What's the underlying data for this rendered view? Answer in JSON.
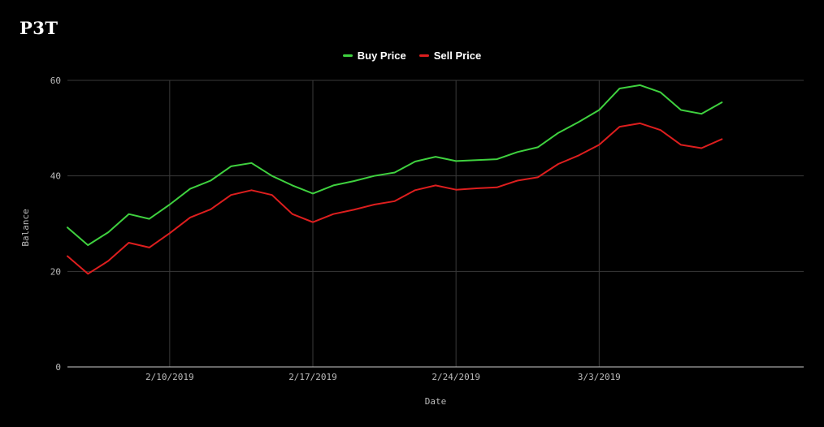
{
  "app": {
    "logo_text": "P3T"
  },
  "chart_data": {
    "type": "line",
    "title": "",
    "xlabel": "Date",
    "ylabel": "Balance",
    "ylim": [
      0,
      60
    ],
    "y_ticks": [
      0,
      20,
      40,
      60
    ],
    "x_range": [
      "2/5/2019",
      "3/13/2019"
    ],
    "x_ticks": [
      "2/10/2019",
      "2/17/2019",
      "2/24/2019",
      "3/3/2019"
    ],
    "grid": true,
    "legend_position": "top-center",
    "x": [
      "2/5/2019",
      "2/6/2019",
      "2/7/2019",
      "2/8/2019",
      "2/9/2019",
      "2/10/2019",
      "2/11/2019",
      "2/12/2019",
      "2/13/2019",
      "2/14/2019",
      "2/15/2019",
      "2/16/2019",
      "2/17/2019",
      "2/18/2019",
      "2/19/2019",
      "2/20/2019",
      "2/21/2019",
      "2/22/2019",
      "2/23/2019",
      "2/24/2019",
      "2/25/2019",
      "2/26/2019",
      "2/27/2019",
      "2/28/2019",
      "3/1/2019",
      "3/2/2019",
      "3/3/2019",
      "3/4/2019",
      "3/5/2019",
      "3/6/2019",
      "3/7/2019",
      "3/8/2019",
      "3/9/2019"
    ],
    "series": [
      {
        "name": "Buy Price",
        "color": "#3fd13f",
        "values": [
          29.2,
          25.5,
          28.2,
          32.0,
          31.0,
          34.0,
          37.3,
          39.0,
          42.0,
          42.7,
          40.0,
          38.0,
          36.3,
          38.0,
          38.9,
          40.0,
          40.7,
          43.0,
          44.0,
          43.1,
          43.3,
          43.5,
          45.0,
          46.0,
          49.0,
          51.3,
          53.8,
          58.3,
          59.0,
          57.5,
          53.8,
          53.0,
          55.4
        ]
      },
      {
        "name": "Sell Price",
        "color": "#dd1e1e",
        "values": [
          23.2,
          19.5,
          22.2,
          26.0,
          25.0,
          28.0,
          31.3,
          33.0,
          36.0,
          37.0,
          36.0,
          32.0,
          30.3,
          32.0,
          32.9,
          34.0,
          34.7,
          37.0,
          38.0,
          37.1,
          37.4,
          37.6,
          39.0,
          39.7,
          42.5,
          44.3,
          46.5,
          50.3,
          51.0,
          49.6,
          46.5,
          45.8,
          47.7
        ]
      }
    ]
  }
}
